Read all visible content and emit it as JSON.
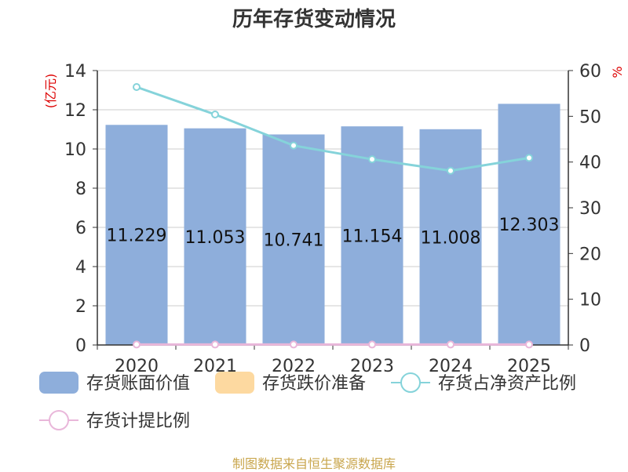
{
  "chart_data": {
    "type": "bar",
    "title": "历年存货变动情况",
    "categories": [
      "2020",
      "2021",
      "2022",
      "2023",
      "2024",
      "2025"
    ],
    "y_left": {
      "label": "(亿元)",
      "range": [
        0,
        14
      ],
      "ticks": [
        0,
        2,
        4,
        6,
        8,
        10,
        12,
        14
      ]
    },
    "y_right": {
      "label": "%",
      "range": [
        0,
        60
      ],
      "ticks": [
        0,
        10,
        20,
        30,
        40,
        50,
        60
      ]
    },
    "series": [
      {
        "name": "存货账面价值",
        "type": "bar",
        "axis": "left",
        "color": "#8eaedb",
        "values": [
          11.229,
          11.053,
          10.741,
          11.154,
          11.008,
          12.303
        ],
        "data_labels": [
          "11.229",
          "11.053",
          "10.741",
          "11.154",
          "11.008",
          "12.303"
        ]
      },
      {
        "name": "存货跌价准备",
        "type": "bar",
        "axis": "left",
        "color": "#fdd9a0",
        "values": [
          0,
          0,
          0,
          0,
          0,
          0
        ]
      },
      {
        "name": "存货占净资产比例",
        "type": "line",
        "axis": "right",
        "color": "#85d3da",
        "values": [
          56.4,
          50.4,
          43.6,
          40.6,
          38.1,
          40.9
        ]
      },
      {
        "name": "存货计提比例",
        "type": "line",
        "axis": "right",
        "color": "#e9b7da",
        "values": [
          0.1,
          0.1,
          0.1,
          0.1,
          0.1,
          0.1
        ]
      }
    ],
    "grid": true,
    "legend_position": "bottom-left"
  },
  "source": "制图数据来自恒生聚源数据库"
}
